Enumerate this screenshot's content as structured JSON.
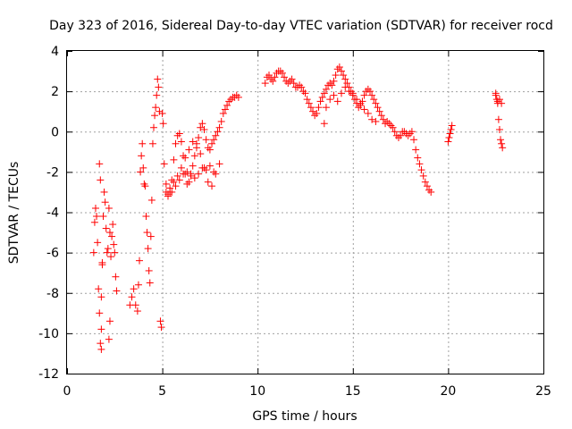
{
  "chart_data": {
    "type": "scatter",
    "title": "Day 323 of 2016, Sidereal Day-to-day VTEC variation (SDTVAR) for receiver rocd",
    "xlabel": "GPS time / hours",
    "ylabel": "SDTVAR / TECUs",
    "xlim": [
      0,
      25
    ],
    "ylim": [
      -12,
      4
    ],
    "xticks": [
      "0",
      "5",
      "10",
      "15",
      "20",
      "25"
    ],
    "yticks": [
      "4",
      "2",
      "0",
      "-2",
      "-4",
      "-6",
      "-8",
      "-10",
      "-12"
    ],
    "xtick_values": [
      0,
      5,
      10,
      15,
      20,
      25
    ],
    "ytick_values": [
      4,
      2,
      0,
      -2,
      -4,
      -6,
      -8,
      -10,
      -12
    ],
    "grid": true,
    "marker": "+",
    "marker_color": "#ff0000",
    "series": [
      {
        "name": "SDTVAR",
        "x": [
          1.4,
          1.45,
          1.5,
          1.55,
          1.6,
          1.65,
          1.7,
          1.75,
          1.8,
          1.85,
          1.9,
          1.95,
          2.0,
          2.05,
          2.1,
          2.15,
          2.2,
          2.25,
          2.3,
          2.35,
          2.4,
          2.45,
          2.5,
          2.55,
          2.6,
          1.7,
          1.75,
          1.8,
          1.8,
          1.85,
          2.2,
          2.25,
          3.3,
          3.4,
          3.5,
          3.6,
          3.7,
          3.75,
          3.8,
          3.85,
          3.9,
          3.95,
          4.0,
          4.05,
          4.1,
          4.15,
          4.2,
          4.25,
          4.3,
          4.35,
          4.4,
          4.45,
          4.5,
          4.55,
          4.6,
          4.65,
          4.7,
          4.75,
          4.8,
          4.85,
          4.9,
          4.95,
          5.0,
          5.05,
          5.1,
          5.2,
          5.3,
          5.4,
          5.5,
          5.6,
          5.7,
          5.8,
          5.9,
          6.0,
          6.1,
          6.2,
          6.3,
          6.4,
          6.5,
          6.6,
          6.7,
          6.8,
          6.9,
          7.0,
          7.1,
          7.2,
          7.3,
          7.4,
          7.5,
          7.6,
          7.7,
          7.8,
          7.9,
          8.0,
          8.1,
          8.2,
          8.3,
          8.4,
          8.5,
          8.6,
          8.7,
          8.8,
          8.9,
          9.0,
          5.2,
          5.4,
          5.6,
          5.8,
          6.0,
          6.2,
          6.4,
          6.6,
          6.8,
          7.0,
          7.2,
          7.4,
          7.6,
          7.8,
          8.0,
          5.3,
          5.5,
          5.7,
          5.9,
          6.1,
          6.3,
          6.5,
          6.7,
          6.9,
          7.1,
          7.3,
          7.5,
          7.7,
          10.4,
          10.5,
          10.6,
          10.7,
          10.8,
          10.9,
          11.0,
          11.1,
          11.2,
          11.3,
          11.4,
          11.5,
          11.6,
          11.7,
          11.8,
          11.9,
          12.0,
          12.1,
          12.2,
          12.3,
          12.4,
          12.5,
          12.6,
          12.7,
          12.8,
          12.9,
          13.0,
          13.1,
          13.2,
          13.3,
          13.4,
          13.5,
          13.6,
          13.7,
          13.8,
          13.9,
          14.0,
          14.1,
          14.2,
          14.3,
          14.4,
          14.5,
          14.6,
          14.7,
          14.8,
          14.9,
          15.0,
          15.1,
          15.2,
          15.3,
          15.4,
          15.5,
          15.6,
          15.7,
          15.8,
          15.9,
          16.0,
          16.1,
          16.2,
          16.3,
          16.4,
          16.5,
          16.6,
          16.7,
          16.8,
          16.9,
          17.0,
          13.5,
          13.6,
          13.8,
          14.0,
          14.2,
          14.4,
          14.6,
          14.8,
          15.0,
          15.2,
          15.4,
          15.6,
          15.8,
          16.0,
          16.2,
          17.1,
          17.2,
          17.3,
          17.4,
          17.5,
          17.6,
          17.7,
          17.8,
          17.9,
          18.0,
          18.1,
          18.2,
          18.3,
          18.4,
          18.5,
          18.6,
          18.7,
          18.8,
          18.9,
          19.0,
          19.1,
          20.0,
          20.05,
          20.1,
          20.15,
          20.2,
          22.5,
          22.55,
          22.6,
          22.65,
          22.7,
          22.75,
          22.8,
          22.85,
          22.5,
          22.6,
          22.7,
          22.8
        ],
        "y": [
          -6.0,
          -4.5,
          -3.8,
          -4.2,
          -5.5,
          -7.8,
          -9.0,
          -10.5,
          -9.8,
          -6.5,
          -4.2,
          -3.0,
          -3.5,
          -4.8,
          -6.0,
          -5.8,
          -3.8,
          -5.0,
          -6.2,
          -5.2,
          -4.6,
          -5.6,
          -6.0,
          -7.2,
          -7.9,
          -1.6,
          -2.4,
          -8.2,
          -10.8,
          -6.6,
          -10.3,
          -9.4,
          -8.6,
          -8.2,
          -7.8,
          -8.6,
          -8.9,
          -7.6,
          -6.4,
          -2.0,
          -1.2,
          -0.6,
          -1.8,
          -2.6,
          -2.7,
          -4.2,
          -5.0,
          -5.8,
          -6.9,
          -7.5,
          -5.2,
          -3.4,
          -0.6,
          0.2,
          0.8,
          1.2,
          1.8,
          2.6,
          2.2,
          1.0,
          -9.4,
          -9.7,
          0.9,
          0.4,
          -1.6,
          -2.6,
          -3.1,
          -3.0,
          -2.4,
          -1.4,
          -0.6,
          -0.2,
          -0.1,
          -0.5,
          -1.2,
          -2.1,
          -2.6,
          -2.5,
          -2.2,
          -1.7,
          -1.2,
          -0.8,
          -0.3,
          0.2,
          0.4,
          0.1,
          -0.4,
          -0.8,
          -0.9,
          -0.6,
          -0.4,
          -0.2,
          0.0,
          0.2,
          0.5,
          0.9,
          1.1,
          1.3,
          1.5,
          1.6,
          1.7,
          1.7,
          1.8,
          1.7,
          -3.0,
          -2.8,
          -2.5,
          -2.2,
          -1.8,
          -1.3,
          -0.9,
          -0.5,
          -0.6,
          -1.1,
          -1.8,
          -2.5,
          -2.7,
          -2.1,
          -1.6,
          -3.2,
          -3.0,
          -2.7,
          -2.4,
          -2.1,
          -2.0,
          -2.1,
          -2.3,
          -2.1,
          -1.8,
          -1.9,
          -1.7,
          -2.0,
          2.4,
          2.7,
          2.8,
          2.6,
          2.5,
          2.7,
          2.9,
          3.0,
          3.0,
          2.9,
          2.7,
          2.5,
          2.4,
          2.5,
          2.6,
          2.4,
          2.2,
          2.2,
          2.3,
          2.2,
          2.0,
          1.9,
          1.6,
          1.4,
          1.2,
          1.0,
          0.8,
          0.9,
          1.2,
          1.5,
          1.7,
          1.9,
          2.1,
          2.3,
          2.4,
          2.3,
          2.5,
          2.8,
          3.1,
          3.2,
          3.0,
          2.8,
          2.6,
          2.4,
          2.2,
          2.0,
          1.8,
          1.6,
          1.4,
          1.2,
          1.3,
          1.5,
          1.8,
          2.0,
          2.1,
          2.0,
          1.8,
          1.6,
          1.4,
          1.2,
          1.0,
          0.8,
          0.6,
          0.4,
          0.5,
          0.4,
          0.3,
          0.4,
          1.2,
          1.6,
          1.8,
          1.5,
          1.9,
          2.2,
          2.0,
          1.9,
          1.6,
          1.4,
          1.1,
          0.9,
          0.6,
          0.5,
          0.2,
          0.0,
          -0.2,
          -0.3,
          -0.2,
          0.0,
          0.0,
          -0.1,
          -0.2,
          -0.1,
          0.0,
          -0.4,
          -0.9,
          -1.3,
          -1.6,
          -1.9,
          -2.2,
          -2.5,
          -2.7,
          -2.9,
          -3.0,
          -0.5,
          -0.3,
          -0.1,
          0.1,
          0.3,
          1.9,
          1.6,
          1.4,
          0.6,
          0.1,
          -0.4,
          -0.6,
          -0.8,
          1.8,
          1.5,
          1.6,
          1.4
        ]
      }
    ]
  }
}
